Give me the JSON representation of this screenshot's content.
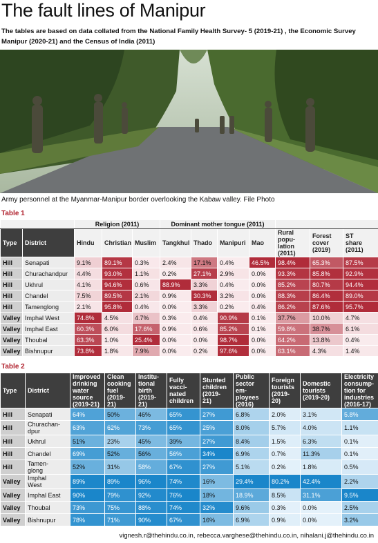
{
  "header": {
    "title": "The fault lines of Manipur",
    "subtitle": "The tables are based on data collated from the National Family Health Survey- 5 (2019-21) , the Economic Survey Manipur (2020-21) and the Census of India (2011)"
  },
  "photo": {
    "caption": "Army personnel at the Myanmar-Manipur border overlooking the Kabaw valley. File Photo"
  },
  "table1": {
    "label": "Table 1",
    "groups": [
      "Religion (2011)",
      "Dominant mother tongue (2011)"
    ],
    "columns": [
      "Type",
      "District",
      "Hindu",
      "Christian",
      "Muslim",
      "Tangkhul",
      "Thado",
      "Manipuri",
      "Mao",
      "Rural\npopu-\nlation\n(2011)",
      "Forest\ncover\n(2019)",
      "ST\nshare\n(2011)"
    ],
    "rows": [
      [
        "Hill",
        "Senapati",
        "9.1%",
        "89.1%",
        "0.3%",
        "2.4%",
        "17.1%",
        "0.4%",
        "46.5%",
        "98.4%",
        "65.3%",
        "87.5%"
      ],
      [
        "Hill",
        "Churachandpur",
        "4.4%",
        "93.0%",
        "1.1%",
        "0.2%",
        "27.1%",
        "2.9%",
        "0.0%",
        "93.3%",
        "85.8%",
        "92.9%"
      ],
      [
        "Hill",
        "Ukhrul",
        "4.1%",
        "94.6%",
        "0.6%",
        "88.9%",
        "3.3%",
        "0.4%",
        "0.0%",
        "85.2%",
        "80.7%",
        "94.4%"
      ],
      [
        "Hill",
        "Chandel",
        "7.5%",
        "89.5%",
        "2.1%",
        "0.9%",
        "30.3%",
        "3.2%",
        "0.0%",
        "88.3%",
        "86.4%",
        "89.0%"
      ],
      [
        "Hill",
        "Tamenglong",
        "2.1%",
        "95.8%",
        "0.4%",
        "0.0%",
        "3.3%",
        "0.2%",
        "0.4%",
        "86.2%",
        "87.6%",
        "95.7%"
      ],
      [
        "Valley",
        "Imphal West",
        "74.8%",
        "4.5%",
        "4.7%",
        "0.3%",
        "0.4%",
        "90.9%",
        "0.1%",
        "37.7%",
        "10.0%",
        "4.7%"
      ],
      [
        "Valley",
        "Imphal East",
        "60.3%",
        "6.0%",
        "17.6%",
        "0.9%",
        "0.6%",
        "85.2%",
        "0.1%",
        "59.8%",
        "38.7%",
        "6.1%"
      ],
      [
        "Valley",
        "Thoubal",
        "63.3%",
        "1.0%",
        "25.4%",
        "0.0%",
        "0.0%",
        "98.7%",
        "0.0%",
        "64.2%",
        "13.8%",
        "0.4%"
      ],
      [
        "Valley",
        "Bishnupur",
        "73.8%",
        "1.8%",
        "7.9%",
        "0.0%",
        "0.2%",
        "97.6%",
        "0.0%",
        "63.1%",
        "4.3%",
        "1.4%"
      ]
    ]
  },
  "table2": {
    "label": "Table 2",
    "columns": [
      "Type",
      "District",
      "Improved\ndrinking\nwater\nsource\n(2019-21)",
      "Clean\ncooking\nfuel\n(2019-\n21)",
      "Institu-\ntional\nbirth\n(2019-\n21)",
      "Fully\nvacci-\nnated\nchildren",
      "Stunted\nchildren\n(2019-\n21)",
      "Public\nsector\nem-\nployees\n(2016)",
      "Foreign\ntourists\n(2019-\n20)",
      "Domestic\ntourists\n(2019-20)",
      "Electricity\nconsump-\ntion for\nindustries\n(2016-17)"
    ],
    "rows": [
      [
        "Hill",
        "Senapati",
        "64%",
        "50%",
        "46%",
        "65%",
        "27%",
        "6.8%",
        "2.0%",
        "3.1%",
        "5.8%"
      ],
      [
        "Hill",
        "Churachan-\ndpur",
        "63%",
        "62%",
        "73%",
        "65%",
        "25%",
        "8.0%",
        "5.7%",
        "4.0%",
        "1.1%"
      ],
      [
        "Hill",
        "Ukhrul",
        "51%",
        "23%",
        "45%",
        "39%",
        "27%",
        "8.4%",
        "1.5%",
        "6.3%",
        "0.1%"
      ],
      [
        "Hill",
        "Chandel",
        "69%",
        "52%",
        "56%",
        "56%",
        "34%",
        "6.9%",
        "0.7%",
        "11.3%",
        "0.1%"
      ],
      [
        "Hill",
        "Tamen-\nglong",
        "52%",
        "31%",
        "58%",
        "67%",
        "27%",
        "5.1%",
        "0.2%",
        "1.8%",
        "0.5%"
      ],
      [
        "Valley",
        "Imphal\nWest",
        "89%",
        "89%",
        "96%",
        "74%",
        "16%",
        "29.4%",
        "80.2%",
        "42.4%",
        "2.2%"
      ],
      [
        "Valley",
        "Imphal East",
        "90%",
        "79%",
        "92%",
        "76%",
        "18%",
        "18.9%",
        "8.5%",
        "31.1%",
        "9.5%"
      ],
      [
        "Valley",
        "Thoubal",
        "73%",
        "75%",
        "88%",
        "74%",
        "32%",
        "9.6%",
        "0.3%",
        "0.0%",
        "2.5%"
      ],
      [
        "Valley",
        "Bishnupur",
        "78%",
        "71%",
        "90%",
        "67%",
        "16%",
        "6.9%",
        "0.9%",
        "0.0%",
        "3.2%"
      ]
    ]
  },
  "footer": {
    "emails": "vignesh.r@thehindu.co.in, rebecca.varghese@thehindu.co.in, nihalani.j@thehindu.co.in"
  }
}
